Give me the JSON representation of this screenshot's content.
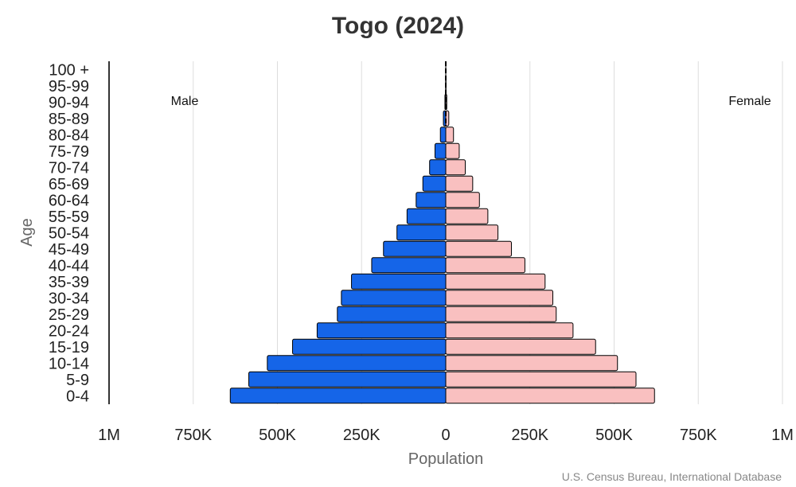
{
  "chart_data": {
    "type": "bar",
    "title": "Togo (2024)",
    "xlabel": "Population",
    "ylabel": "Age",
    "categories": [
      "0-4",
      "5-9",
      "10-14",
      "15-19",
      "20-24",
      "25-29",
      "30-34",
      "35-39",
      "40-44",
      "45-49",
      "50-54",
      "55-59",
      "60-64",
      "65-69",
      "70-74",
      "75-79",
      "80-84",
      "85-89",
      "90-94",
      "95-99",
      "100 +"
    ],
    "series": [
      {
        "name": "Male",
        "color": "#1565e8",
        "values": [
          640000,
          585000,
          530000,
          455000,
          382000,
          322000,
          310000,
          280000,
          220000,
          185000,
          145000,
          115000,
          88000,
          68000,
          48000,
          32000,
          16000,
          7000,
          2500,
          500,
          80
        ]
      },
      {
        "name": "Female",
        "color": "#f9c0c0",
        "values": [
          620000,
          565000,
          510000,
          445000,
          378000,
          328000,
          318000,
          295000,
          235000,
          195000,
          155000,
          125000,
          100000,
          80000,
          58000,
          40000,
          23000,
          9000,
          3000,
          800,
          150
        ]
      }
    ],
    "xlim": [
      -1000000,
      1000000
    ],
    "x_ticks": [
      {
        "value": -1000000,
        "label": "1M"
      },
      {
        "value": -750000,
        "label": "750K"
      },
      {
        "value": -500000,
        "label": "500K"
      },
      {
        "value": -250000,
        "label": "250K"
      },
      {
        "value": 0,
        "label": "0"
      },
      {
        "value": 250000,
        "label": "250K"
      },
      {
        "value": 500000,
        "label": "500K"
      },
      {
        "value": 750000,
        "label": "750K"
      },
      {
        "value": 1000000,
        "label": "1M"
      }
    ],
    "grid": true,
    "side_labels": {
      "left": "Male",
      "right": "Female"
    },
    "source": "U.S. Census Bureau, International Database"
  }
}
